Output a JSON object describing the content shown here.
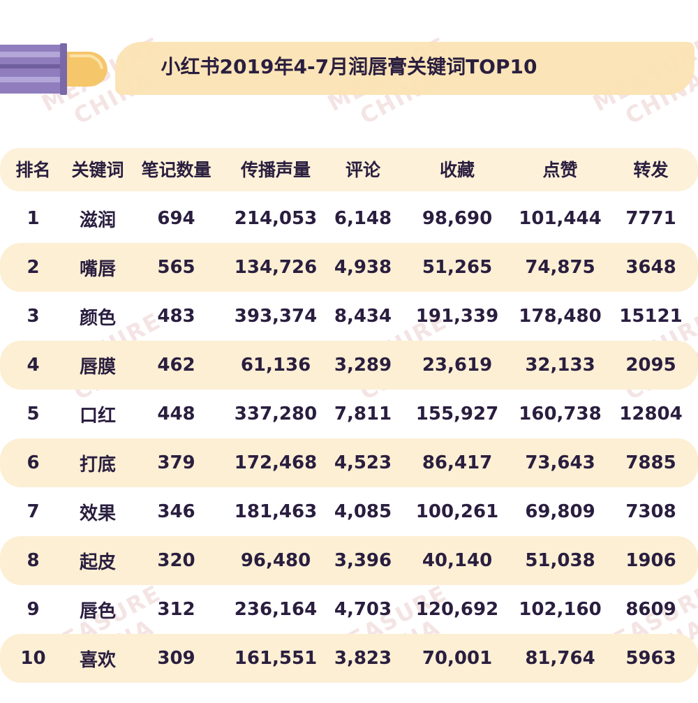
{
  "title": "小红书2019年4-7月润唇膏关键词TOP10",
  "watermark": [
    "MEASURE",
    "CHINA"
  ],
  "colors": {
    "band": "#fcefd4",
    "title_band": "#fbe3b3",
    "text": "#2a1e3f",
    "lipstick_tube": "#8f7dbd",
    "lipstick_bullet": "#f5c66a"
  },
  "chart_data": {
    "type": "table",
    "columns": [
      "排名",
      "关键词",
      "笔记数量",
      "传播声量",
      "评论",
      "收藏",
      "点赞",
      "转发"
    ],
    "rows": [
      [
        "1",
        "滋润",
        "694",
        "214,053",
        "6,148",
        "98,690",
        "101,444",
        "7771"
      ],
      [
        "2",
        "嘴唇",
        "565",
        "134,726",
        "4,938",
        "51,265",
        "74,875",
        "3648"
      ],
      [
        "3",
        "颜色",
        "483",
        "393,374",
        "8,434",
        "191,339",
        "178,480",
        "15121"
      ],
      [
        "4",
        "唇膜",
        "462",
        "61,136",
        "3,289",
        "23,619",
        "32,133",
        "2095"
      ],
      [
        "5",
        "口红",
        "448",
        "337,280",
        "7,811",
        "155,927",
        "160,738",
        "12804"
      ],
      [
        "6",
        "打底",
        "379",
        "172,468",
        "4,523",
        "86,417",
        "73,643",
        "7885"
      ],
      [
        "7",
        "效果",
        "346",
        "181,463",
        "4,085",
        "100,261",
        "69,809",
        "7308"
      ],
      [
        "8",
        "起皮",
        "320",
        "96,480",
        "3,396",
        "40,140",
        "51,038",
        "1906"
      ],
      [
        "9",
        "唇色",
        "312",
        "236,164",
        "4,703",
        "120,692",
        "102,160",
        "8609"
      ],
      [
        "10",
        "喜欢",
        "309",
        "161,551",
        "3,823",
        "70,001",
        "81,764",
        "5963"
      ]
    ]
  }
}
